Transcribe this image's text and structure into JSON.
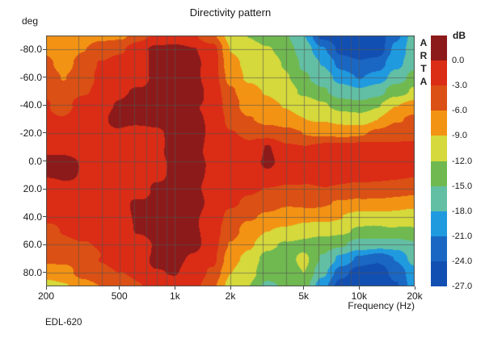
{
  "title": "Directivity pattern",
  "watermark": "ARTA",
  "model": "EDL-620",
  "axes": {
    "y_unit": "deg",
    "x_label": "Frequency (Hz)",
    "x_ticks": [
      {
        "label": "200",
        "value": 200
      },
      {
        "label": "500",
        "value": 500
      },
      {
        "label": "1k",
        "value": 1000
      },
      {
        "label": "2k",
        "value": 2000
      },
      {
        "label": "5k",
        "value": 5000
      },
      {
        "label": "10k",
        "value": 10000
      },
      {
        "label": "20k",
        "value": 20000
      }
    ],
    "y_ticks": [
      {
        "label": "-80.0",
        "value": -80
      },
      {
        "label": "-60.0",
        "value": -60
      },
      {
        "label": "-40.0",
        "value": -40
      },
      {
        "label": "-20.0",
        "value": -20
      },
      {
        "label": "0.0",
        "value": 0
      },
      {
        "label": "20.0",
        "value": 20
      },
      {
        "label": "40.0",
        "value": 40
      },
      {
        "label": "60.0",
        "value": 60
      },
      {
        "label": "80.0",
        "value": 80
      }
    ]
  },
  "legend": {
    "unit": "dB",
    "boundary_labels": [
      "0.0",
      "-3.0",
      "-6.0",
      "-9.0",
      "-12.0",
      "-15.0",
      "-18.0",
      "-21.0",
      "-24.0",
      "-27.0"
    ],
    "colors": [
      "#8C1A1A",
      "#DB2C16",
      "#DB5014",
      "#F39314",
      "#D5D93B",
      "#70B951",
      "#62BFA4",
      "#209ADF",
      "#1A67C3",
      "#124FB2"
    ]
  },
  "chart_data": {
    "type": "heatmap",
    "title": "Directivity pattern",
    "xlabel": "Frequency (Hz)",
    "ylabel": "deg",
    "x_scale": "log",
    "x_range_hz": [
      200,
      20000
    ],
    "y_range_deg": [
      -90,
      90
    ],
    "level_step_db": 3,
    "level_max_db": 0,
    "level_min_db": -27,
    "grid": true,
    "grid_freqs_hz": [
      200,
      250,
      315,
      400,
      500,
      630,
      800,
      1000,
      1250,
      1600,
      2000,
      2500,
      3150,
      4000,
      5000,
      6300,
      8000,
      10000,
      12500,
      16000,
      20000
    ],
    "grid_angles_deg": [
      -90,
      -80,
      -70,
      -60,
      -50,
      -40,
      -30,
      -20,
      -10,
      0,
      10,
      20,
      30,
      40,
      50,
      60,
      70,
      80,
      90
    ],
    "values_db": [
      [
        -7.5,
        -7.5,
        -7.5,
        -7,
        -6.5,
        -4.5,
        -2.5,
        -2,
        -2.5,
        -5,
        -10,
        -12,
        -13,
        -14.5,
        -17.5,
        -25,
        -26,
        -26,
        -25,
        -21.5,
        -16.5
      ],
      [
        -7,
        -8,
        -6.5,
        -4.5,
        -3.5,
        -1.5,
        0.5,
        1,
        0.5,
        -1.5,
        -9,
        -10.5,
        -12,
        -13.5,
        -16.5,
        -21,
        -25,
        -26,
        -25.5,
        -20,
        -16
      ],
      [
        -5,
        -7.5,
        -5,
        -3,
        -1.5,
        -1,
        0.5,
        1,
        0.5,
        -1,
        -7.5,
        -10,
        -11,
        -12.5,
        -15.5,
        -18.5,
        -22,
        -23,
        -22.5,
        -18.5,
        -15.5
      ],
      [
        -4,
        -6,
        -4.5,
        -2.5,
        -1.5,
        -1,
        0.5,
        1,
        0.5,
        -1,
        -6.5,
        -9.5,
        -10.5,
        -12,
        -14.5,
        -16.5,
        -19.5,
        -21,
        -20,
        -16.5,
        -13.5
      ],
      [
        -3.5,
        -4.5,
        -3.5,
        -2,
        -1,
        0.5,
        1,
        1,
        0.5,
        -1,
        -5.5,
        -8,
        -9.5,
        -11,
        -13,
        -14.5,
        -16.5,
        -17.5,
        -16.5,
        -13.5,
        -11.5
      ],
      [
        -3,
        -3.5,
        -2.5,
        -1.5,
        0.5,
        1,
        1,
        1.5,
        0.5,
        -0.5,
        -4.5,
        -7,
        -8.5,
        -9.5,
        -11,
        -12,
        -13.5,
        -13.5,
        -12,
        -9,
        -7.5
      ],
      [
        -2.5,
        -2.5,
        -2,
        -1,
        1,
        1,
        0.5,
        1.5,
        1,
        -0.5,
        -3.5,
        -5.5,
        -7,
        -8,
        -9,
        -9.5,
        -10.5,
        -10.5,
        -9,
        -6.5,
        -5
      ],
      [
        -2,
        -2,
        -1.5,
        -1,
        -0.5,
        -1,
        -0.5,
        1,
        1,
        -0.5,
        -2.5,
        -3.5,
        -4.5,
        -5.5,
        -6,
        -6.5,
        -7,
        -6.5,
        -5.5,
        -4.5,
        -4
      ],
      [
        -1,
        -1,
        -1,
        -1,
        -1.5,
        -1.5,
        -1,
        1,
        1.5,
        -0.5,
        -2,
        -2.5,
        0.5,
        -2.5,
        -2.5,
        -2,
        -2,
        -2,
        -2,
        -2,
        -2.5
      ],
      [
        0.5,
        1,
        -0.5,
        -1,
        -1.5,
        -1.5,
        -1,
        1,
        1.5,
        -0.5,
        -1.5,
        -2,
        0.5,
        -2,
        -1.5,
        -1.5,
        -1.5,
        -1.5,
        -1.5,
        -1.5,
        -2
      ],
      [
        0.5,
        0.5,
        -0.5,
        -1,
        -1.5,
        -1.5,
        -0.5,
        1,
        1,
        -0.5,
        -1.5,
        -2,
        -1,
        -2,
        -2,
        -1.5,
        -1.5,
        -1.5,
        -2,
        -2,
        -2.5
      ],
      [
        -1.5,
        -1,
        -1,
        -1.5,
        -1.5,
        -1,
        0.5,
        1,
        0.5,
        -1,
        -2,
        -2.5,
        -3,
        -3.5,
        -3,
        -3,
        -3.5,
        -4,
        -4.5,
        -4.5,
        -5
      ],
      [
        -2,
        -1.5,
        -1.5,
        -1.5,
        -1,
        0.5,
        1,
        1,
        0.5,
        -1,
        -2.5,
        -4,
        -5,
        -5.5,
        -5.5,
        -5.5,
        -6,
        -6.5,
        -7,
        -7,
        -7.5
      ],
      [
        -2.5,
        -2,
        -2,
        -1.5,
        -1,
        0.5,
        1,
        1,
        0.5,
        -1,
        -3.5,
        -5.5,
        -7,
        -7.5,
        -8,
        -8.5,
        -9,
        -9.5,
        -10,
        -10,
        -10.5
      ],
      [
        -3,
        -2.5,
        -2.5,
        -2,
        -1.5,
        0.5,
        1,
        1,
        0.5,
        -1.5,
        -4.5,
        -7,
        -9,
        -10,
        -10.5,
        -11,
        -11.5,
        -12.5,
        -13,
        -12.5,
        -12
      ],
      [
        -4,
        -3.5,
        -3,
        -2.5,
        -1.5,
        -1,
        0.5,
        1,
        0.5,
        -1.5,
        -6,
        -8.5,
        -11,
        -12.5,
        -13,
        -13.5,
        -14.5,
        -16.5,
        -17,
        -16.5,
        -15.5
      ],
      [
        -5.5,
        -5,
        -4,
        -3,
        -2,
        -1.5,
        0.5,
        0.5,
        -0.5,
        -2,
        -7.5,
        -10,
        -12.5,
        -13.5,
        -11,
        -15,
        -19,
        -22,
        -23,
        -21,
        -17
      ],
      [
        -7,
        -6.5,
        -5.5,
        -4.5,
        -3,
        -2,
        -0.5,
        0.5,
        -1,
        -3.5,
        -8.5,
        -11,
        -13.5,
        -14.5,
        -12,
        -17.5,
        -23,
        -25.5,
        -26,
        -23,
        -18.5
      ],
      [
        -10,
        -9.5,
        -7,
        -6,
        -4.5,
        -3,
        -1.5,
        -1,
        -2,
        -5,
        -9.5,
        -12,
        -16,
        -14.5,
        -13.5,
        -20,
        -25.5,
        -26.5,
        -26.5,
        -24,
        -19
      ]
    ],
    "palette": [
      "#8C1A1A",
      "#DB2C16",
      "#DB5014",
      "#F39314",
      "#D5D93B",
      "#70B951",
      "#62BFA4",
      "#209ADF",
      "#1A67C3",
      "#124FB2"
    ],
    "legend_position": "right"
  }
}
